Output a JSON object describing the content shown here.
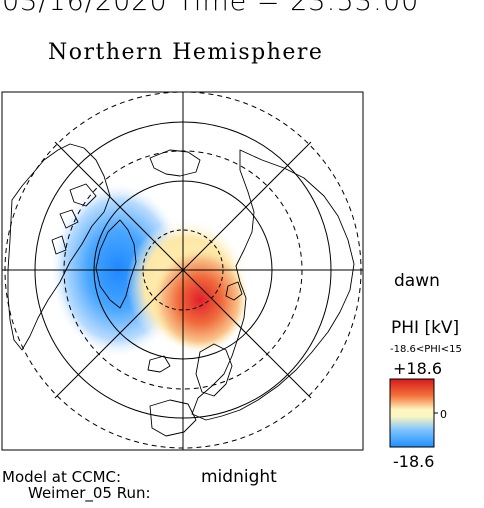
{
  "header": {
    "date_line": "03/16/2020 Time = 23:53:00",
    "hemisphere_title": "Northern Hemisphere"
  },
  "orientation_labels": {
    "dawn": "dawn",
    "midnight": "midnight"
  },
  "legend": {
    "quantity_label": "PHI [kV]",
    "range_label": "-18.6<PHI<15",
    "max_label": "+18.6",
    "min_label": "-18.6",
    "zero_label": "0",
    "colors": {
      "positive": "#d7191c",
      "neutral": "#fdf6c0",
      "negative": "#1e90ff"
    }
  },
  "footer": {
    "model_line": "Model at CCMC:",
    "run_line": "Weimer_05 Run:"
  },
  "map": {
    "projection": "polar-north",
    "features": [
      "coastlines",
      "latitude-circles",
      "meridian-grid"
    ],
    "potential_cells": [
      {
        "sign": "negative",
        "description_icon": "blue-cell-dusk"
      },
      {
        "sign": "positive",
        "description_icon": "red-cell-dawn"
      }
    ]
  }
}
